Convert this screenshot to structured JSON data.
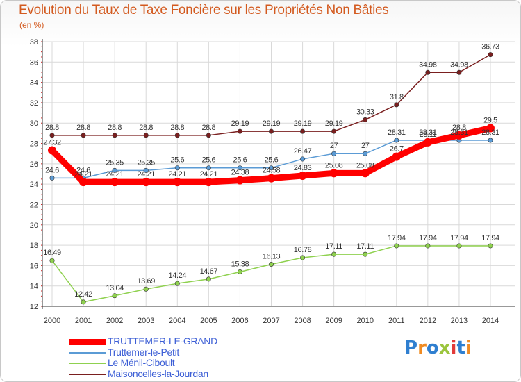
{
  "header": {
    "title": "Evolution du Taux de Taxe Foncière sur les Propriétés Non Bâties",
    "unit": "(en %)"
  },
  "colors": {
    "title": "#d35a1f",
    "legend_text": "#3d5fd6",
    "grid": "#d9d9d9",
    "axis_text": "#333333"
  },
  "logo": {
    "text": "Proxiti",
    "letters": [
      {
        "ch": "P",
        "color": "#2f7fd0"
      },
      {
        "ch": "r",
        "color": "#f08b22"
      },
      {
        "ch": "o",
        "color": "#2f7fd0"
      },
      {
        "ch": "x",
        "color": "#9bc53d"
      },
      {
        "ch": "i",
        "color": "#e23a3a"
      },
      {
        "ch": "t",
        "color": "#2f7fd0"
      },
      {
        "ch": "i",
        "color": "#f08b22"
      }
    ]
  },
  "chart_data": {
    "type": "line",
    "title": "Evolution du Taux de Taxe Foncière sur les Propriétés Non Bâties",
    "ylabel": "(en %)",
    "xlabel": "",
    "ylim": [
      12,
      38
    ],
    "yticks": [
      12,
      14,
      16,
      18,
      20,
      22,
      24,
      26,
      28,
      30,
      32,
      34,
      36,
      38
    ],
    "categories": [
      "2000",
      "2001",
      "2002",
      "2003",
      "2004",
      "2005",
      "2006",
      "2007",
      "2008",
      "2009",
      "2010",
      "2011",
      "2012",
      "2013",
      "2014"
    ],
    "grid": true,
    "legend_position": "bottom-left",
    "series": [
      {
        "name": "Maisoncelles-la-Jourdan",
        "color": "#7a1f1f",
        "values": [
          28.8,
          28.8,
          28.8,
          28.8,
          28.8,
          28.8,
          29.19,
          29.19,
          29.19,
          29.19,
          30.33,
          31.8,
          34.98,
          34.98,
          36.73
        ],
        "labels": [
          "28.8",
          "28.8",
          "28.8",
          "28.8",
          "28.8",
          "28.8",
          "29.19",
          "29.19",
          "29.19",
          "29.19",
          "30.33",
          "31.8",
          "34.98",
          "34.98",
          "36.73"
        ]
      },
      {
        "name": "Truttemer-le-Petit",
        "color": "#5b9bd5",
        "values": [
          24.6,
          24.6,
          25.35,
          25.35,
          25.6,
          25.6,
          25.6,
          25.6,
          26.47,
          27,
          27,
          28.31,
          28.31,
          28.31,
          28.31
        ],
        "labels": [
          "24.6",
          "24.6",
          "25.35",
          "25.35",
          "25.6",
          "25.6",
          "25.6",
          "25.6",
          "26.47",
          "27",
          "27",
          "28.31",
          "28.31",
          "28.31",
          "28.31"
        ]
      },
      {
        "name": "Le Ménil-Ciboult",
        "color": "#8fd14f",
        "values": [
          16.49,
          12.42,
          13.04,
          13.69,
          14.24,
          14.67,
          15.38,
          16.13,
          16.78,
          17.11,
          17.11,
          17.94,
          17.94,
          17.94,
          17.94
        ],
        "labels": [
          "16.49",
          "12.42",
          "13.04",
          "13.69",
          "14.24",
          "14.67",
          "15.38",
          "16.13",
          "16.78",
          "17.11",
          "17.11",
          "17.94",
          "17.94",
          "17.94",
          "17.94"
        ]
      },
      {
        "name": "TRUTTEMER-LE-GRAND",
        "color": "#ff0000",
        "values": [
          27.32,
          24.21,
          24.21,
          24.21,
          24.21,
          24.21,
          24.38,
          24.58,
          24.83,
          25.08,
          25.08,
          26.7,
          28.11,
          28.8,
          29.5
        ],
        "labels": [
          "27.32",
          "24.21",
          "24.21",
          "24.21",
          "24.21",
          "24.21",
          "24.38",
          "24.58",
          "24.83",
          "25.08",
          "25.08",
          "26.7",
          "28.11",
          "28.8",
          "29.5"
        ]
      }
    ],
    "legend": [
      {
        "name": "TRUTTEMER-LE-GRAND",
        "color": "#ff0000",
        "width": 9
      },
      {
        "name": "Truttemer-le-Petit",
        "color": "#5b9bd5",
        "width": 2
      },
      {
        "name": "Le Ménil-Ciboult",
        "color": "#8fd14f",
        "width": 2
      },
      {
        "name": "Maisoncelles-la-Jourdan",
        "color": "#7a1f1f",
        "width": 2
      }
    ]
  }
}
